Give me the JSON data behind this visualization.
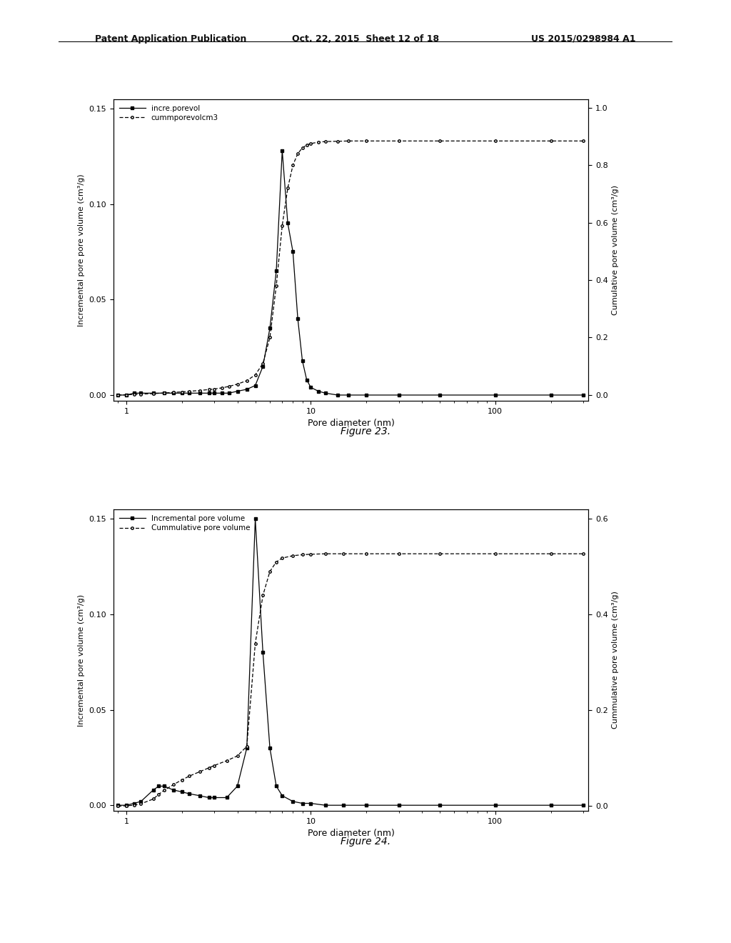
{
  "header_left": "Patent Application Publication",
  "header_mid": "Oct. 22, 2015  Sheet 12 of 18",
  "header_right": "US 2015/0298984 A1",
  "fig23_caption": "Figure 23.",
  "fig24_caption": "Figure 24.",
  "fig23": {
    "legend1": "incre.porevol",
    "legend2": "cummporevolcm3",
    "ylabel_left": "Incremental pore pore volume (cm³/g)",
    "ylabel_right": "Cumulative pore volume (cm³/g)",
    "xlabel": "Pore diameter (nm)",
    "ylim_left": [
      -0.003,
      0.155
    ],
    "ylim_right": [
      -0.02,
      1.03
    ],
    "xlim": [
      0.85,
      320
    ],
    "yticks_left": [
      0.0,
      0.05,
      0.1,
      0.15
    ],
    "yticks_right": [
      0.0,
      0.2,
      0.4,
      0.6,
      0.8,
      1.0
    ],
    "inc_x": [
      0.9,
      1.0,
      1.1,
      1.2,
      1.4,
      1.6,
      1.8,
      2.0,
      2.2,
      2.5,
      2.8,
      3.0,
      3.3,
      3.6,
      4.0,
      4.5,
      5.0,
      5.5,
      6.0,
      6.5,
      7.0,
      7.5,
      8.0,
      8.5,
      9.0,
      9.5,
      10.0,
      11.0,
      12.0,
      14.0,
      16.0,
      20.0,
      30.0,
      50.0,
      100.0,
      200.0,
      300.0
    ],
    "inc_y": [
      0.0,
      0.0,
      0.001,
      0.001,
      0.001,
      0.001,
      0.001,
      0.001,
      0.001,
      0.001,
      0.001,
      0.001,
      0.001,
      0.001,
      0.002,
      0.003,
      0.005,
      0.015,
      0.035,
      0.065,
      0.128,
      0.09,
      0.075,
      0.04,
      0.018,
      0.008,
      0.004,
      0.002,
      0.001,
      0.0,
      0.0,
      0.0,
      0.0,
      0.0,
      0.0,
      0.0,
      0.0
    ],
    "cum_x": [
      0.9,
      1.0,
      1.1,
      1.2,
      1.4,
      1.6,
      1.8,
      2.0,
      2.2,
      2.5,
      2.8,
      3.0,
      3.3,
      3.6,
      4.0,
      4.5,
      5.0,
      5.5,
      6.0,
      6.5,
      7.0,
      7.5,
      8.0,
      8.5,
      9.0,
      9.5,
      10.0,
      11.0,
      12.0,
      14.0,
      16.0,
      20.0,
      30.0,
      50.0,
      100.0,
      200.0,
      300.0
    ],
    "cum_y": [
      0.0,
      0.001,
      0.002,
      0.003,
      0.005,
      0.007,
      0.009,
      0.011,
      0.013,
      0.016,
      0.019,
      0.021,
      0.025,
      0.03,
      0.038,
      0.05,
      0.07,
      0.11,
      0.2,
      0.38,
      0.59,
      0.72,
      0.8,
      0.84,
      0.86,
      0.87,
      0.875,
      0.88,
      0.882,
      0.883,
      0.884,
      0.884,
      0.884,
      0.884,
      0.884,
      0.884,
      0.884
    ]
  },
  "fig24": {
    "legend1": "Incremental pore volume",
    "legend2": "Cummulative pore volume",
    "ylabel_left": "Incremental pore volume (cm³/g)",
    "ylabel_right": "Cummulative pore volume (cm³/g)",
    "xlabel": "Pore diameter (nm)",
    "ylim_left": [
      -0.003,
      0.155
    ],
    "ylim_right": [
      -0.01,
      0.62
    ],
    "xlim": [
      0.85,
      320
    ],
    "yticks_left": [
      0.0,
      0.05,
      0.1,
      0.15
    ],
    "yticks_right": [
      0.0,
      0.2,
      0.4,
      0.6
    ],
    "inc_x": [
      0.9,
      1.0,
      1.1,
      1.2,
      1.4,
      1.5,
      1.6,
      1.8,
      2.0,
      2.2,
      2.5,
      2.8,
      3.0,
      3.5,
      4.0,
      4.5,
      5.0,
      5.5,
      6.0,
      6.5,
      7.0,
      8.0,
      9.0,
      10.0,
      12.0,
      15.0,
      20.0,
      30.0,
      50.0,
      100.0,
      200.0,
      300.0
    ],
    "inc_y": [
      0.0,
      0.0,
      0.001,
      0.002,
      0.008,
      0.01,
      0.01,
      0.008,
      0.007,
      0.006,
      0.005,
      0.004,
      0.004,
      0.004,
      0.01,
      0.03,
      0.15,
      0.08,
      0.03,
      0.01,
      0.005,
      0.002,
      0.001,
      0.001,
      0.0,
      0.0,
      0.0,
      0.0,
      0.0,
      0.0,
      0.0,
      0.0
    ],
    "cum_x": [
      0.9,
      1.0,
      1.1,
      1.2,
      1.4,
      1.5,
      1.6,
      1.8,
      2.0,
      2.2,
      2.5,
      2.8,
      3.0,
      3.5,
      4.0,
      4.5,
      5.0,
      5.5,
      6.0,
      6.5,
      7.0,
      8.0,
      9.0,
      10.0,
      12.0,
      15.0,
      20.0,
      30.0,
      50.0,
      100.0,
      200.0,
      300.0
    ],
    "cum_y": [
      0.0,
      0.001,
      0.002,
      0.005,
      0.015,
      0.025,
      0.033,
      0.045,
      0.055,
      0.063,
      0.072,
      0.08,
      0.085,
      0.095,
      0.105,
      0.125,
      0.34,
      0.44,
      0.49,
      0.51,
      0.518,
      0.523,
      0.525,
      0.526,
      0.527,
      0.527,
      0.527,
      0.527,
      0.527,
      0.527,
      0.527,
      0.527
    ]
  },
  "bg_color": "#ffffff",
  "line_color": "#000000"
}
